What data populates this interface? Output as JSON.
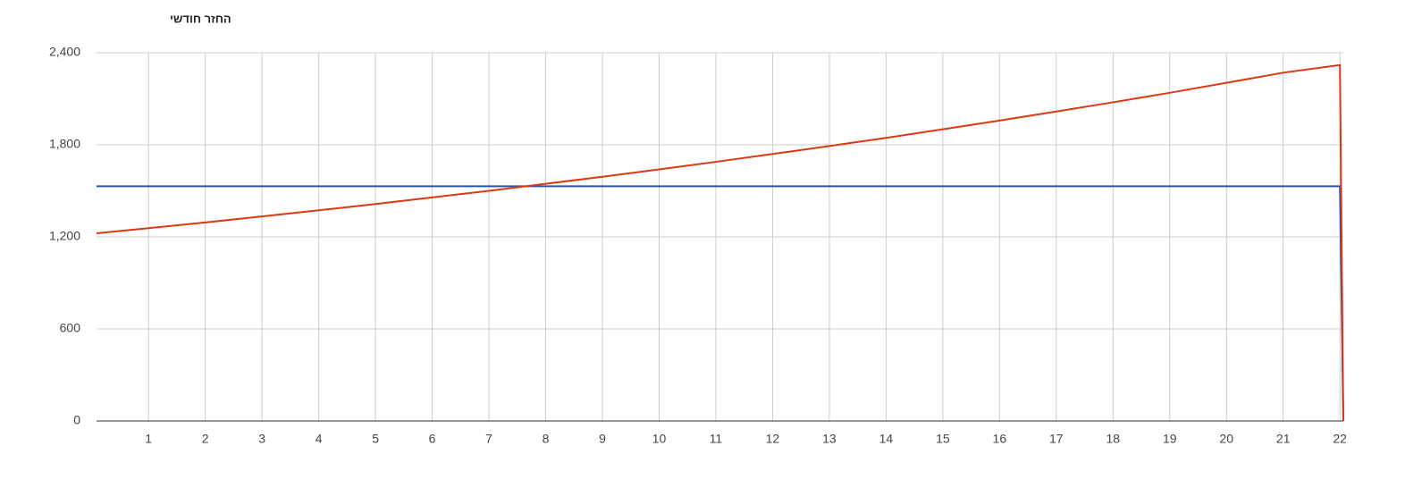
{
  "chart_data": {
    "type": "line",
    "title": "החזר חודשי",
    "x": [
      0.083,
      1,
      2,
      3,
      4,
      5,
      6,
      7,
      8,
      9,
      10,
      11,
      12,
      13,
      14,
      15,
      16,
      17,
      18,
      19,
      20,
      21,
      22,
      22.06
    ],
    "series": [
      {
        "color": "#2a52b0",
        "values": [
          1530,
          1530,
          1530,
          1530,
          1530,
          1530,
          1530,
          1530,
          1530,
          1530,
          1530,
          1530,
          1530,
          1530,
          1530,
          1530,
          1530,
          1530,
          1530,
          1530,
          1530,
          1530,
          1530,
          0
        ]
      },
      {
        "color": "#dc3912",
        "values": [
          1223,
          1257,
          1294,
          1333,
          1373,
          1414,
          1457,
          1500,
          1546,
          1592,
          1640,
          1689,
          1740,
          1792,
          1845,
          1901,
          1958,
          2017,
          2077,
          2139,
          2204,
          2270,
          2320,
          0
        ]
      }
    ],
    "xlim": [
      0.083,
      22.06
    ],
    "xticks": [
      1,
      2,
      3,
      4,
      5,
      6,
      7,
      8,
      9,
      10,
      11,
      12,
      13,
      14,
      15,
      16,
      17,
      18,
      19,
      20,
      21,
      22
    ],
    "ylim": [
      0,
      2400
    ],
    "yticks": [
      0,
      600,
      {
        "value": 1200,
        "label": "1,200"
      },
      {
        "value": 1800,
        "label": "1,800"
      },
      {
        "value": 2400,
        "label": "2,400"
      }
    ],
    "grid": true
  }
}
